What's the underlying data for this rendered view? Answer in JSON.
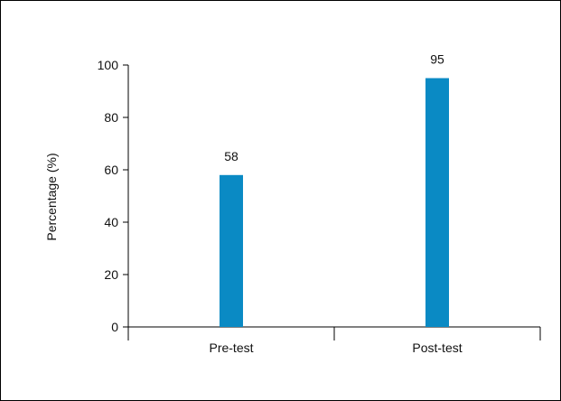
{
  "chart_data": {
    "type": "bar",
    "title": "",
    "xlabel": "",
    "ylabel": "Percentage (%)",
    "categories": [
      "Pre-test",
      "Post-test"
    ],
    "values": [
      58,
      95
    ],
    "data_labels": [
      "58",
      "95"
    ],
    "ylim": [
      0,
      100
    ],
    "yticks": [
      0,
      20,
      40,
      60,
      80,
      100
    ],
    "ytick_labels": [
      "0",
      "20",
      "40",
      "60",
      "80",
      "100"
    ],
    "grid": false,
    "legend": "none",
    "bar_color": "#0a8ac4"
  }
}
